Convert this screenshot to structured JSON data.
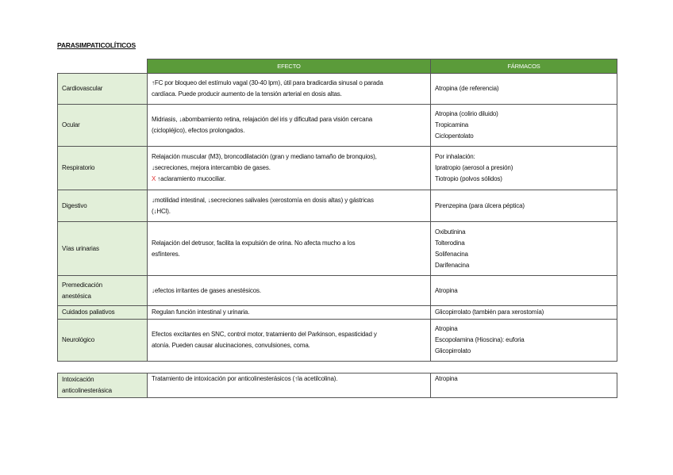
{
  "title": "PARASIMPATICOLÍTICOS",
  "header": {
    "efecto": "EFECTO",
    "farmacos": "FÁRMACOS"
  },
  "rows": [
    {
      "system": [
        "Cardiovascular"
      ],
      "efecto": [
        "↑FC por bloqueo del estímulo vagal (30-40 lpm), útil para bradicardia sinusal o parada",
        "cardíaca. Puede producir aumento de la tensión arterial en dosis altas."
      ],
      "farmacos": [
        "Atropina (de referencia)"
      ]
    },
    {
      "system": [
        "Ocular"
      ],
      "efecto": [
        "Midriasis, ↓abombamiento retina, relajación del iris y dificultad para visión cercana",
        "(ciclopléjico), efectos prolongados."
      ],
      "farmacos": [
        "Atropina (colirio diluido)",
        "Tropicamina",
        "Ciclopentolato"
      ]
    },
    {
      "system": [
        "Respiratorio"
      ],
      "efecto": [
        "Relajación muscular (M3), broncodilatación (gran y mediano tamaño de bronquios),",
        "↓secreciones, mejora intercambio de gases."
      ],
      "efecto_extra": {
        "mark": "X",
        "text": "↑aclaramiento mucociliar."
      },
      "farmacos": [
        "Por inhalación:",
        "Ipratropio (aerosol a presión)",
        "Tiotropio (polvos sólidos)"
      ]
    },
    {
      "system": [
        "Digestivo"
      ],
      "efecto": [
        "↓motilidad intestinal, ↓secreciones salivales (xerostomía en dosis altas) y gástricas",
        "(↓HCl)."
      ],
      "farmacos": [
        "Pirenzepina (para úlcera péptica)"
      ]
    },
    {
      "system": [
        "Vías urinarias"
      ],
      "efecto": [
        "Relajación del detrusor, facilita la expulsión de orina. No afecta mucho a los",
        "esfínteres."
      ],
      "farmacos": [
        "Oxibutinina",
        "Tolterodina",
        "Solifenacina",
        "Darifenacina"
      ]
    },
    {
      "system": [
        "Premedicación",
        "anestésica"
      ],
      "efecto": [
        "↓efectos irritantes de gases anestésicos."
      ],
      "farmacos": [
        "Atropina"
      ]
    },
    {
      "system": [
        "Cuidados paliativos"
      ],
      "efecto": [
        "Regulan función intestinal y urinaria."
      ],
      "farmacos": [
        "Glicopirrolato (también para xerostomía)"
      ]
    },
    {
      "system": [
        "Neurológico"
      ],
      "efecto": [
        "Efectos excitantes en SNC, control motor, tratamiento del Parkinson, espasticidad y",
        "atonía. Pueden causar alucinaciones, convulsiones, coma."
      ],
      "farmacos": [
        "Atropina",
        "Escopolamina (Hioscina): euforia",
        "Glicopirrolato"
      ]
    }
  ],
  "extra": {
    "system": [
      "Intoxicación",
      "anticolinesterásica"
    ],
    "efecto": [
      "Tratamiento de intoxicación por anticolinesterásicos (↑la acetilcolina)."
    ],
    "farmacos": [
      "Atropina"
    ]
  },
  "colors": {
    "header": "#5b9b3a",
    "row_header": "#e2efd9",
    "mark": "#e03030"
  }
}
